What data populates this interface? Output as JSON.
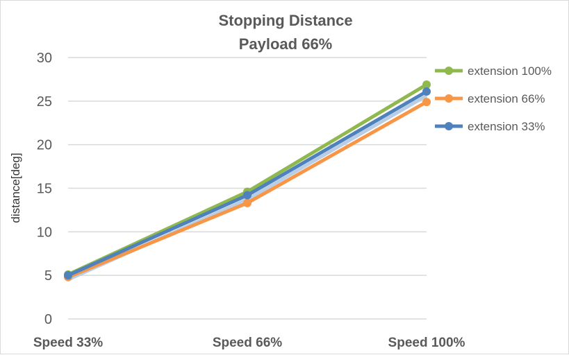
{
  "chart_data": {
    "type": "line",
    "title": "Stopping Distance",
    "subtitle": "Payload 66%",
    "xlabel": "",
    "ylabel": "distance[deg]",
    "ylim": [
      0,
      30
    ],
    "yticks": [
      0,
      5,
      10,
      15,
      20,
      25,
      30
    ],
    "grid": true,
    "legend": "right",
    "categories": [
      "Speed 33%",
      "Speed 66%",
      "Speed 100%"
    ],
    "series": [
      {
        "name": "extension 100%",
        "color": "#8fb84f",
        "values": [
          5.1,
          14.6,
          26.9
        ]
      },
      {
        "name": "extension 66%",
        "color": "#f79646",
        "values": [
          4.8,
          13.3,
          24.9
        ]
      },
      {
        "name": "extension 33%",
        "color": "#4f81bd",
        "values": [
          5.0,
          14.2,
          26.1
        ]
      }
    ]
  }
}
